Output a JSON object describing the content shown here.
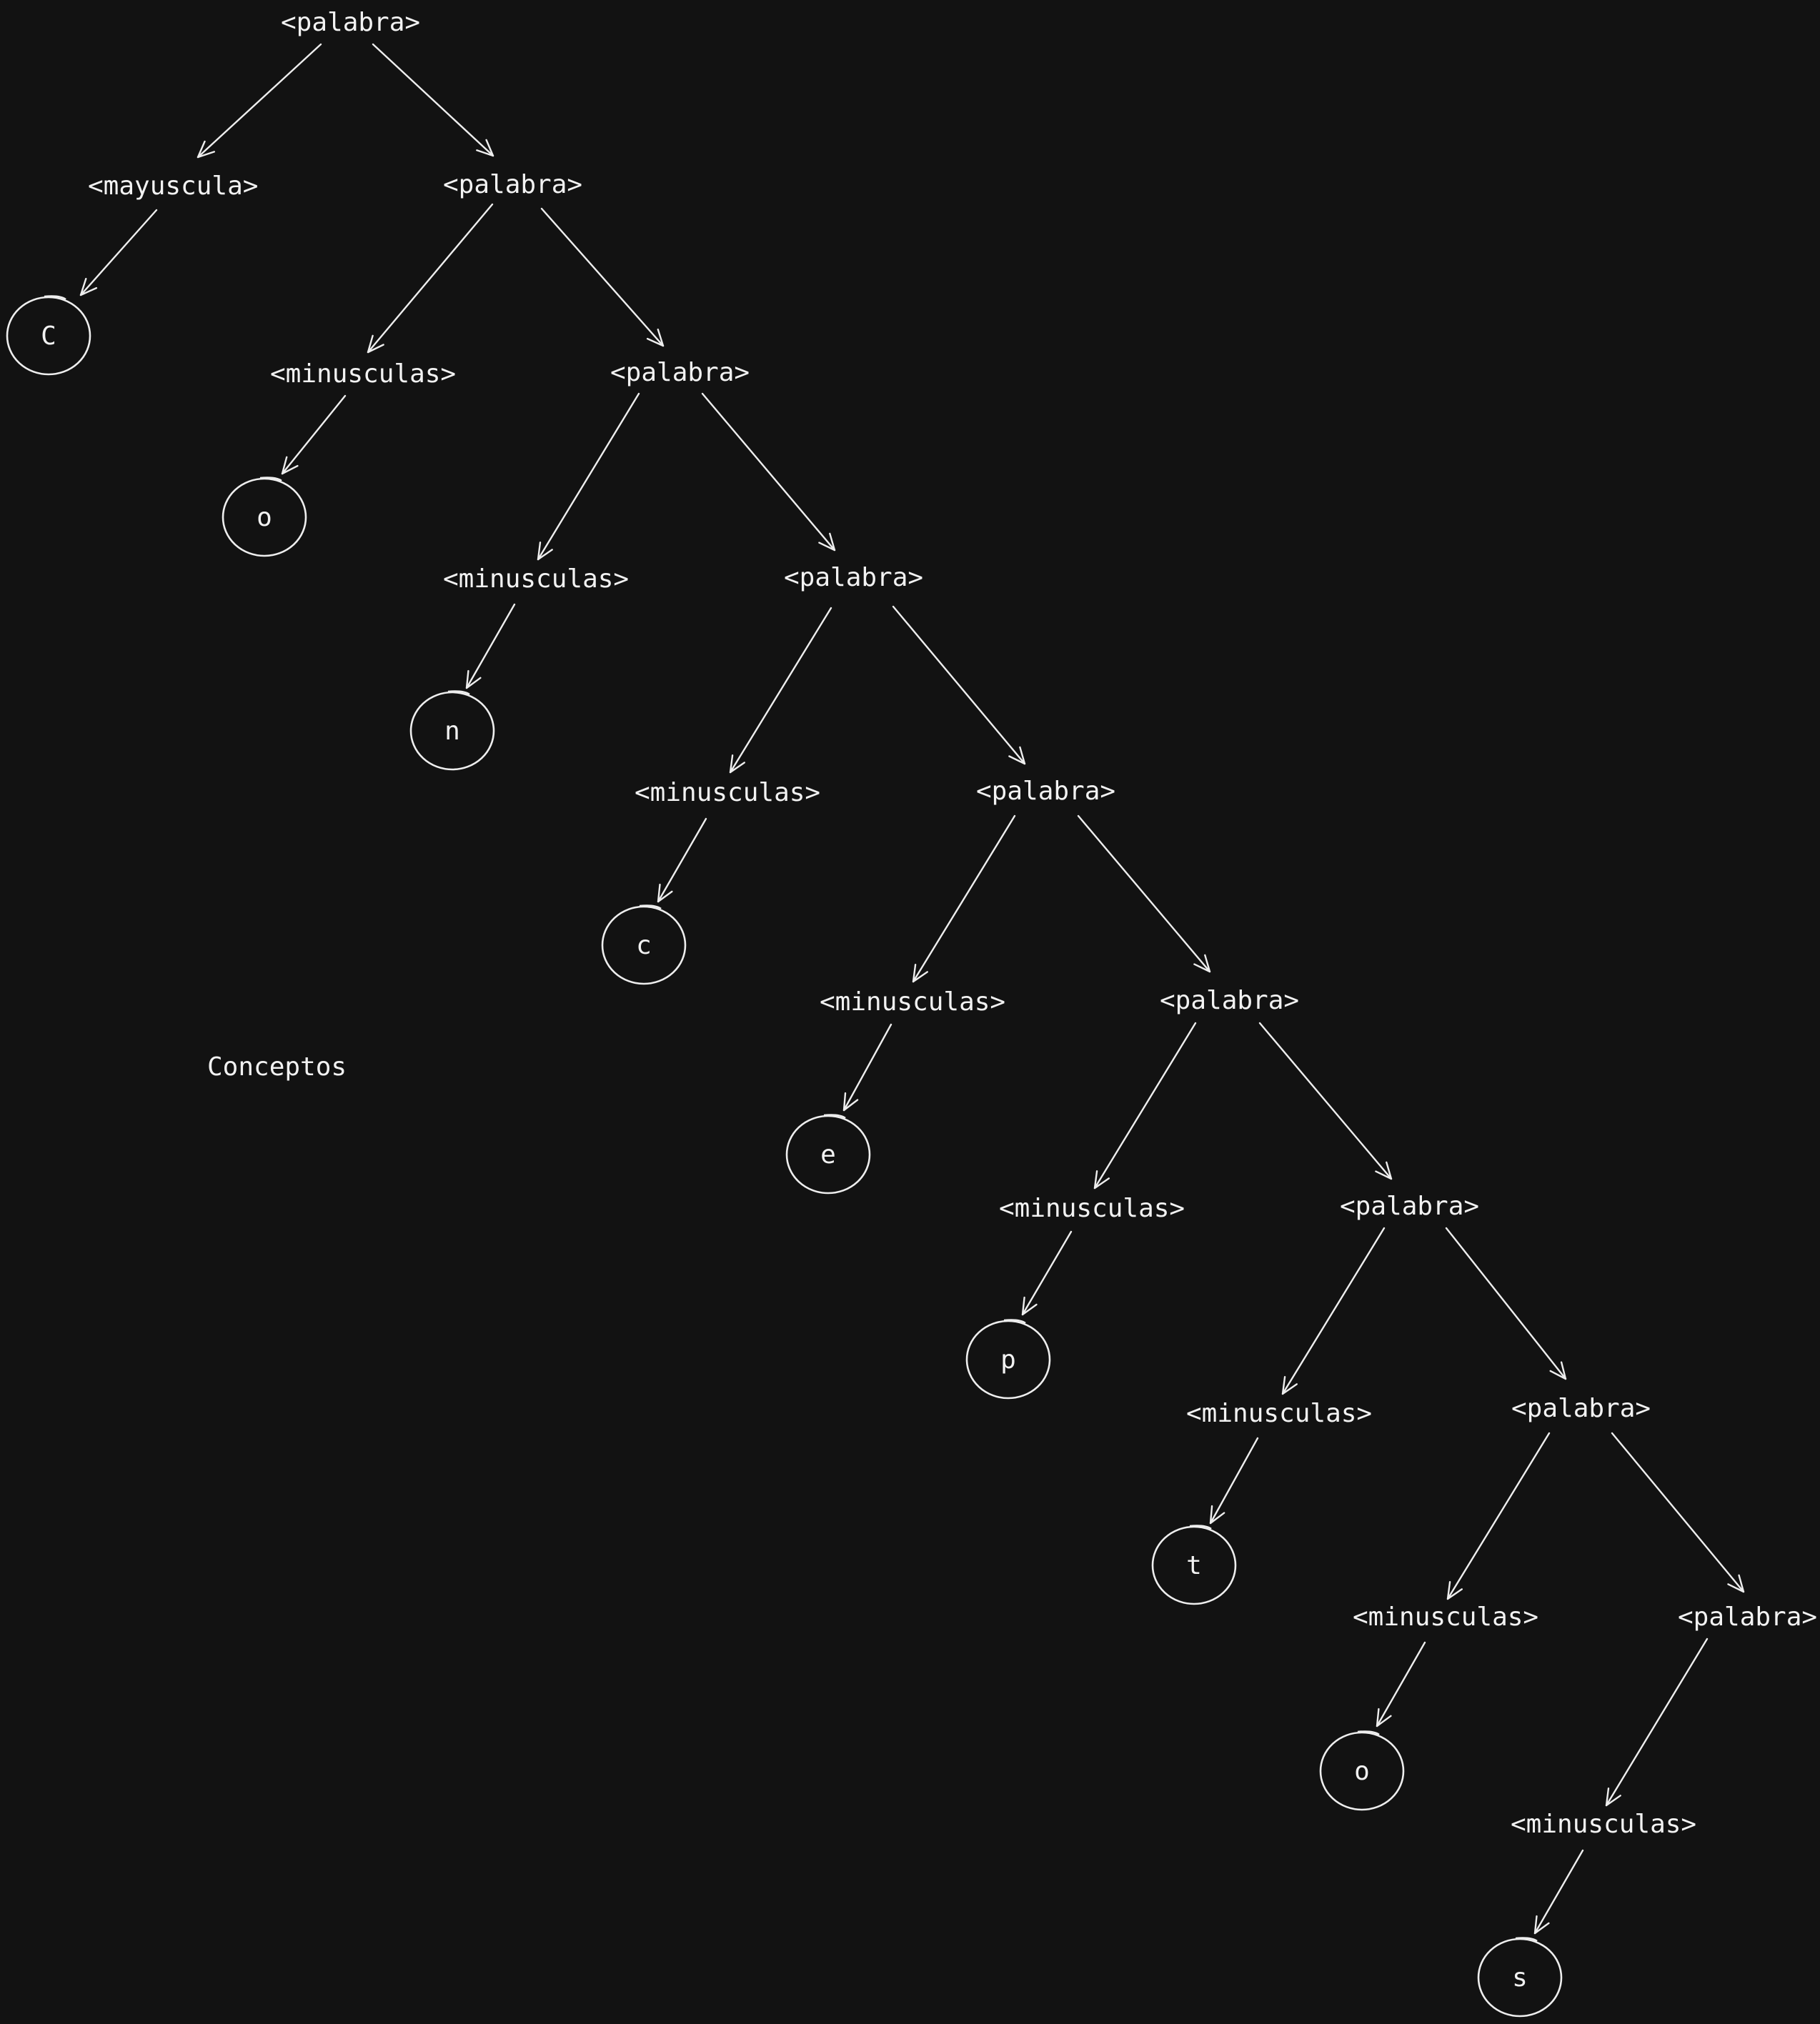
{
  "diagram": {
    "background": "#121212",
    "stroke_color": "#eeeeee",
    "note": "Conceptos",
    "nodes": [
      {
        "id": "p1",
        "label": "<palabra>"
      },
      {
        "id": "may",
        "label": "<mayuscula>"
      },
      {
        "id": "p2",
        "label": "<palabra>"
      },
      {
        "id": "m1",
        "label": "<minusculas>"
      },
      {
        "id": "p3",
        "label": "<palabra>"
      },
      {
        "id": "m2",
        "label": "<minusculas>"
      },
      {
        "id": "p4",
        "label": "<palabra>"
      },
      {
        "id": "m3",
        "label": "<minusculas>"
      },
      {
        "id": "p5",
        "label": "<palabra>"
      },
      {
        "id": "m4",
        "label": "<minusculas>"
      },
      {
        "id": "p6",
        "label": "<palabra>"
      },
      {
        "id": "m5",
        "label": "<minusculas>"
      },
      {
        "id": "p7",
        "label": "<palabra>"
      },
      {
        "id": "m6",
        "label": "<minusculas>"
      },
      {
        "id": "p8",
        "label": "<palabra>"
      },
      {
        "id": "m7",
        "label": "<minusculas>"
      },
      {
        "id": "p9",
        "label": "<palabra>"
      },
      {
        "id": "m8",
        "label": "<minusculas>"
      }
    ],
    "leaves": [
      {
        "id": "lC",
        "label": "C"
      },
      {
        "id": "lo1",
        "label": "o"
      },
      {
        "id": "ln",
        "label": "n"
      },
      {
        "id": "lc",
        "label": "c"
      },
      {
        "id": "le",
        "label": "e"
      },
      {
        "id": "lp",
        "label": "p"
      },
      {
        "id": "lt",
        "label": "t"
      },
      {
        "id": "lo2",
        "label": "o"
      },
      {
        "id": "ls",
        "label": "s"
      }
    ],
    "edges": [
      [
        "p1",
        "may"
      ],
      [
        "p1",
        "p2"
      ],
      [
        "may",
        "lC"
      ],
      [
        "p2",
        "m1"
      ],
      [
        "p2",
        "p3"
      ],
      [
        "m1",
        "lo1"
      ],
      [
        "p3",
        "m2"
      ],
      [
        "p3",
        "p4"
      ],
      [
        "m2",
        "ln"
      ],
      [
        "p4",
        "m3"
      ],
      [
        "p4",
        "p5"
      ],
      [
        "m3",
        "lc"
      ],
      [
        "p5",
        "m4"
      ],
      [
        "p5",
        "p6"
      ],
      [
        "m4",
        "le"
      ],
      [
        "p6",
        "m5"
      ],
      [
        "p6",
        "p7"
      ],
      [
        "m5",
        "lp"
      ],
      [
        "p7",
        "m6"
      ],
      [
        "p7",
        "p8"
      ],
      [
        "m6",
        "lt"
      ],
      [
        "p8",
        "m7"
      ],
      [
        "p8",
        "p9"
      ],
      [
        "m7",
        "lo2"
      ],
      [
        "p9",
        "m8"
      ],
      [
        "m8",
        "ls"
      ]
    ]
  }
}
